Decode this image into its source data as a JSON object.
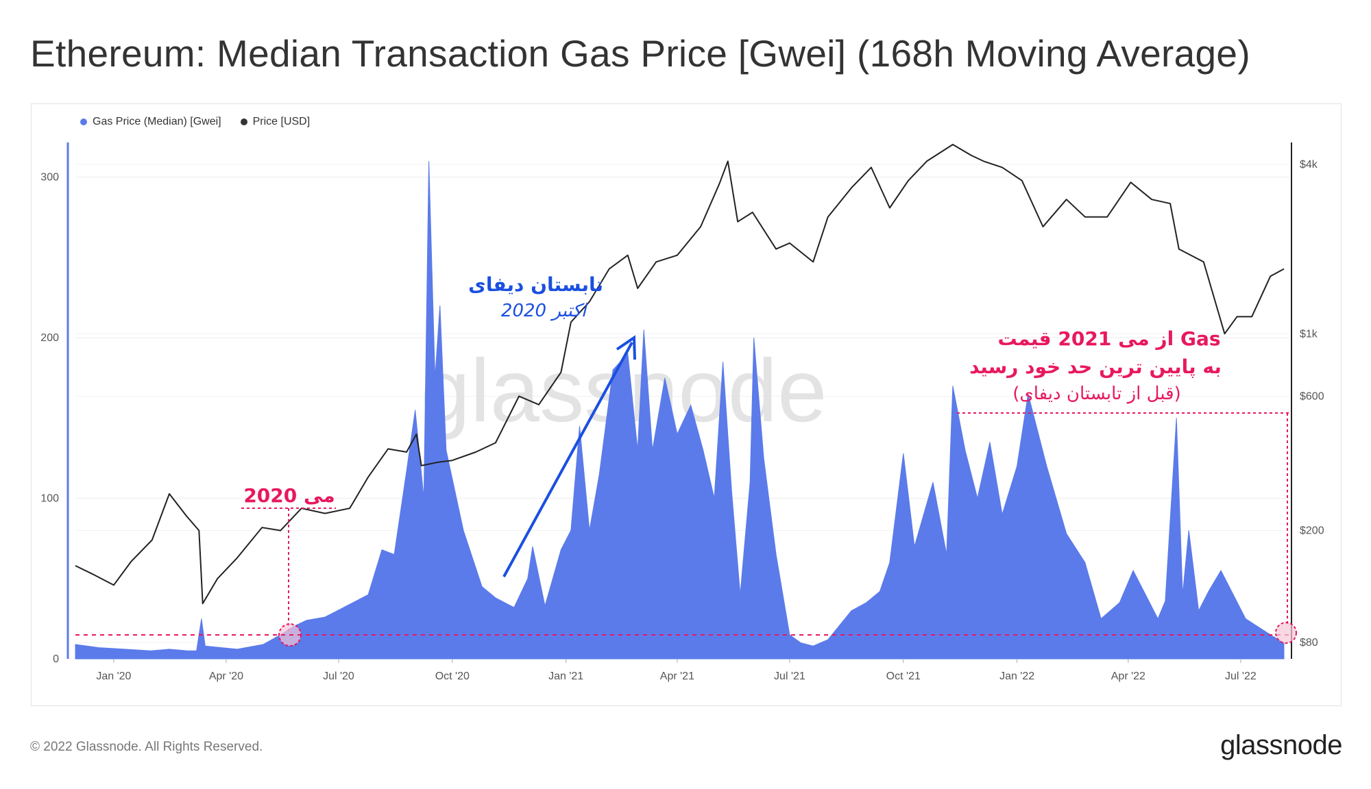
{
  "page": {
    "title": "Ethereum: Median Transaction Gas Price [Gwei] (168h Moving Average)"
  },
  "legend": [
    {
      "label": "Gas Price (Median) [Gwei]",
      "color": "#5b7bea"
    },
    {
      "label": "Price [USD]",
      "color": "#333333"
    }
  ],
  "watermark": "glassnode",
  "footer": {
    "copyright": "© 2022 Glassnode. All Rights Reserved.",
    "brand": "glassnode"
  },
  "annotations": {
    "defi_title": "تابستان دیفای",
    "defi_sub": "اکتبر 2020",
    "may2020": "می 2020",
    "may2021_line1": "از می 2021 قیمت Gas",
    "may2021_line2": "به پایین ترین حد خود رسید",
    "may2021_line3": "(قبل از تابستان دیفای)"
  },
  "colors": {
    "accent_pink": "#e8185f",
    "accent_blue": "#1a4fe0",
    "gas_fill": "#5b7bea",
    "price_line": "#222222"
  },
  "chart_data": {
    "type": "area",
    "x_ticks": [
      "Jan '20",
      "Apr '20",
      "Jul '20",
      "Oct '20",
      "Jan '21",
      "Apr '21",
      "Jul '21",
      "Oct '21",
      "Jan '22",
      "Apr '22",
      "Jul '22"
    ],
    "y_left": {
      "ticks": [
        "0",
        "100",
        "200",
        "300"
      ],
      "ylim": [
        0,
        325
      ]
    },
    "y_right": {
      "scale": "log",
      "ticks": [
        "$80",
        "$200",
        "$600",
        "$1k",
        "$4k"
      ],
      "ylim": [
        70,
        5000
      ]
    },
    "xlim": [
      "2019-12-01",
      "2022-08-10"
    ],
    "series": [
      {
        "name": "Gas Price (Median) [Gwei]",
        "axis": "left",
        "points": [
          [
            "2019-12-01",
            9
          ],
          [
            "2019-12-20",
            7
          ],
          [
            "2020-01-10",
            6
          ],
          [
            "2020-01-31",
            5
          ],
          [
            "2020-02-15",
            6
          ],
          [
            "2020-03-01",
            5
          ],
          [
            "2020-03-08",
            5
          ],
          [
            "2020-03-12",
            25
          ],
          [
            "2020-03-15",
            8
          ],
          [
            "2020-04-10",
            6
          ],
          [
            "2020-05-01",
            9
          ],
          [
            "2020-05-15",
            15
          ],
          [
            "2020-05-25",
            20
          ],
          [
            "2020-06-05",
            24
          ],
          [
            "2020-06-20",
            26
          ],
          [
            "2020-07-10",
            34
          ],
          [
            "2020-07-25",
            40
          ],
          [
            "2020-08-05",
            68
          ],
          [
            "2020-08-15",
            65
          ],
          [
            "2020-08-25",
            117
          ],
          [
            "2020-09-01",
            155
          ],
          [
            "2020-09-08",
            100
          ],
          [
            "2020-09-12",
            310
          ],
          [
            "2020-09-17",
            175
          ],
          [
            "2020-09-21",
            220
          ],
          [
            "2020-09-26",
            130
          ],
          [
            "2020-10-10",
            80
          ],
          [
            "2020-10-25",
            45
          ],
          [
            "2020-11-05",
            38
          ],
          [
            "2020-11-20",
            32
          ],
          [
            "2020-12-01",
            50
          ],
          [
            "2020-12-05",
            70
          ],
          [
            "2020-12-15",
            33
          ],
          [
            "2020-12-28",
            68
          ],
          [
            "2021-01-05",
            80
          ],
          [
            "2021-01-12",
            145
          ],
          [
            "2021-01-20",
            80
          ],
          [
            "2021-01-28",
            115
          ],
          [
            "2021-02-08",
            180
          ],
          [
            "2021-02-20",
            190
          ],
          [
            "2021-02-28",
            130
          ],
          [
            "2021-03-05",
            205
          ],
          [
            "2021-03-12",
            130
          ],
          [
            "2021-03-22",
            175
          ],
          [
            "2021-04-01",
            140
          ],
          [
            "2021-04-12",
            158
          ],
          [
            "2021-04-22",
            130
          ],
          [
            "2021-05-01",
            100
          ],
          [
            "2021-05-08",
            185
          ],
          [
            "2021-05-15",
            105
          ],
          [
            "2021-05-22",
            40
          ],
          [
            "2021-05-30",
            110
          ],
          [
            "2021-06-02",
            200
          ],
          [
            "2021-06-10",
            125
          ],
          [
            "2021-06-20",
            65
          ],
          [
            "2021-07-01",
            15
          ],
          [
            "2021-07-10",
            10
          ],
          [
            "2021-07-20",
            8
          ],
          [
            "2021-08-01",
            12
          ],
          [
            "2021-08-20",
            30
          ],
          [
            "2021-09-01",
            35
          ],
          [
            "2021-09-12",
            42
          ],
          [
            "2021-09-20",
            60
          ],
          [
            "2021-10-01",
            128
          ],
          [
            "2021-10-10",
            70
          ],
          [
            "2021-10-25",
            110
          ],
          [
            "2021-11-05",
            65
          ],
          [
            "2021-11-10",
            170
          ],
          [
            "2021-11-20",
            130
          ],
          [
            "2021-11-30",
            100
          ],
          [
            "2021-12-10",
            135
          ],
          [
            "2021-12-20",
            90
          ],
          [
            "2022-01-01",
            120
          ],
          [
            "2022-01-10",
            165
          ],
          [
            "2022-01-25",
            120
          ],
          [
            "2022-02-10",
            78
          ],
          [
            "2022-02-25",
            60
          ],
          [
            "2022-03-10",
            25
          ],
          [
            "2022-03-25",
            35
          ],
          [
            "2022-04-05",
            55
          ],
          [
            "2022-04-15",
            40
          ],
          [
            "2022-04-25",
            25
          ],
          [
            "2022-05-01",
            36
          ],
          [
            "2022-05-10",
            150
          ],
          [
            "2022-05-15",
            40
          ],
          [
            "2022-05-20",
            80
          ],
          [
            "2022-05-28",
            30
          ],
          [
            "2022-06-05",
            42
          ],
          [
            "2022-06-15",
            55
          ],
          [
            "2022-06-25",
            40
          ],
          [
            "2022-07-05",
            25
          ],
          [
            "2022-07-15",
            20
          ],
          [
            "2022-07-25",
            15
          ],
          [
            "2022-08-05",
            10
          ]
        ]
      },
      {
        "name": "Price [USD]",
        "axis": "right",
        "points": [
          [
            "2019-12-01",
            150
          ],
          [
            "2019-12-15",
            140
          ],
          [
            "2020-01-01",
            128
          ],
          [
            "2020-01-15",
            155
          ],
          [
            "2020-02-01",
            185
          ],
          [
            "2020-02-15",
            270
          ],
          [
            "2020-02-29",
            225
          ],
          [
            "2020-03-10",
            200
          ],
          [
            "2020-03-13",
            110
          ],
          [
            "2020-03-25",
            135
          ],
          [
            "2020-04-10",
            160
          ],
          [
            "2020-04-30",
            205
          ],
          [
            "2020-05-15",
            200
          ],
          [
            "2020-06-01",
            240
          ],
          [
            "2020-06-20",
            230
          ],
          [
            "2020-07-10",
            240
          ],
          [
            "2020-07-25",
            310
          ],
          [
            "2020-08-10",
            390
          ],
          [
            "2020-08-25",
            380
          ],
          [
            "2020-09-02",
            440
          ],
          [
            "2020-09-06",
            340
          ],
          [
            "2020-09-20",
            350
          ],
          [
            "2020-10-01",
            355
          ],
          [
            "2020-10-20",
            380
          ],
          [
            "2020-11-05",
            410
          ],
          [
            "2020-11-24",
            600
          ],
          [
            "2020-12-10",
            560
          ],
          [
            "2020-12-28",
            730
          ],
          [
            "2021-01-05",
            1100
          ],
          [
            "2021-01-20",
            1300
          ],
          [
            "2021-02-05",
            1700
          ],
          [
            "2021-02-20",
            1900
          ],
          [
            "2021-02-28",
            1450
          ],
          [
            "2021-03-15",
            1800
          ],
          [
            "2021-04-01",
            1900
          ],
          [
            "2021-04-20",
            2400
          ],
          [
            "2021-05-05",
            3400
          ],
          [
            "2021-05-12",
            4100
          ],
          [
            "2021-05-20",
            2500
          ],
          [
            "2021-06-01",
            2700
          ],
          [
            "2021-06-20",
            2000
          ],
          [
            "2021-07-01",
            2100
          ],
          [
            "2021-07-20",
            1800
          ],
          [
            "2021-08-01",
            2600
          ],
          [
            "2021-08-20",
            3300
          ],
          [
            "2021-09-05",
            3900
          ],
          [
            "2021-09-20",
            2800
          ],
          [
            "2021-10-05",
            3500
          ],
          [
            "2021-10-20",
            4100
          ],
          [
            "2021-11-10",
            4700
          ],
          [
            "2021-11-25",
            4300
          ],
          [
            "2021-12-05",
            4100
          ],
          [
            "2021-12-20",
            3900
          ],
          [
            "2022-01-05",
            3500
          ],
          [
            "2022-01-22",
            2400
          ],
          [
            "2022-02-10",
            3000
          ],
          [
            "2022-02-25",
            2600
          ],
          [
            "2022-03-15",
            2600
          ],
          [
            "2022-04-03",
            3450
          ],
          [
            "2022-04-20",
            3000
          ],
          [
            "2022-05-05",
            2900
          ],
          [
            "2022-05-12",
            2000
          ],
          [
            "2022-06-01",
            1800
          ],
          [
            "2022-06-18",
            1000
          ],
          [
            "2022-06-28",
            1150
          ],
          [
            "2022-07-10",
            1150
          ],
          [
            "2022-07-25",
            1600
          ],
          [
            "2022-08-05",
            1700
          ]
        ]
      }
    ]
  }
}
